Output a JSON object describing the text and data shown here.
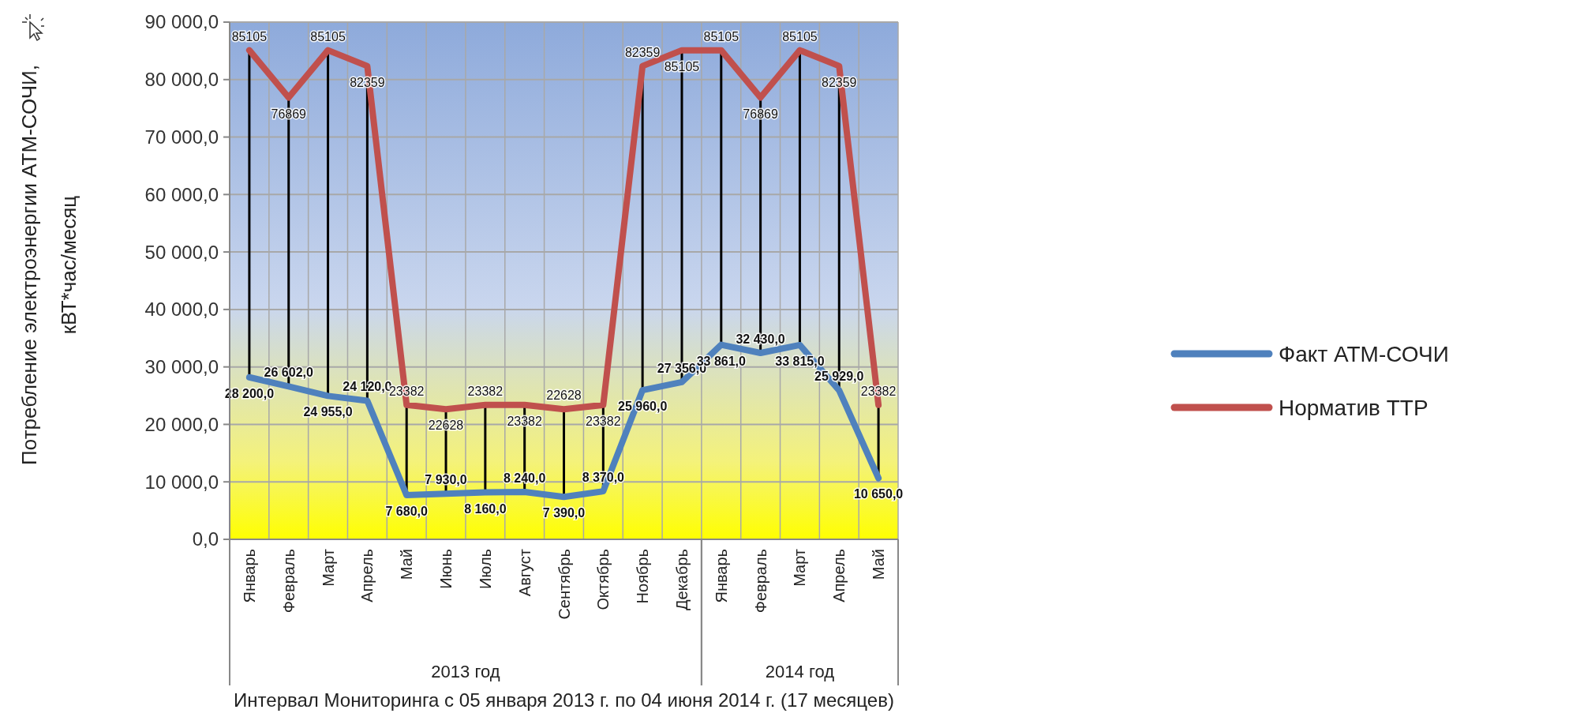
{
  "chart_data": {
    "type": "line",
    "ylabel": "Потребление электроэнергии АТМ-СОЧИ, кВТ*час/месяц",
    "categories": [
      "Январь",
      "Февраль",
      "Март",
      "Апрель",
      "Май",
      "Июнь",
      "Июль",
      "Август",
      "Сентябрь",
      "Октябрь",
      "Ноябрь",
      "Декабрь",
      "Январь",
      "Февраль",
      "Март",
      "Апрель",
      "Май"
    ],
    "series": [
      {
        "name": "Факт АТМ-СОЧИ",
        "color": "#4f81bd",
        "values": [
          28200,
          26602,
          24955,
          24120,
          7680,
          7930,
          8160,
          8240,
          7390,
          8370,
          25960,
          27356,
          33861,
          32430,
          33815,
          25929,
          10650
        ],
        "value_labels": [
          "28 200,0",
          "26 602,0",
          "24 955,0",
          "24 120,0",
          "7 680,0",
          "7 930,0",
          "8 160,0",
          "8 240,0",
          "7 390,0",
          "8 370,0",
          "25 960,0",
          "27 356,0",
          "33 861,0",
          "32 430,0",
          "33 815,0",
          "25 929,0",
          "10 650,0"
        ]
      },
      {
        "name": "Норматив ТТР",
        "color": "#c0504d",
        "values": [
          85105,
          76869,
          85105,
          82359,
          23382,
          22628,
          23382,
          23382,
          22628,
          23382,
          82359,
          85105,
          85105,
          76869,
          85105,
          82359,
          23382
        ],
        "value_labels": [
          "85105",
          "76869",
          "85105",
          "82359",
          "23382",
          "22628",
          "23382",
          "23382",
          "22628",
          "23382",
          "82359",
          "85105",
          "85105",
          "76869",
          "85105",
          "82359",
          "23382"
        ]
      }
    ],
    "ylim": [
      0,
      90000
    ],
    "yticks": [
      {
        "value": 0,
        "label": "0,0"
      },
      {
        "value": 10000,
        "label": "10 000,0"
      },
      {
        "value": 20000,
        "label": "20 000,0"
      },
      {
        "value": 30000,
        "label": "30 000,0"
      },
      {
        "value": 40000,
        "label": "40 000,0"
      },
      {
        "value": 50000,
        "label": "50 000,0"
      },
      {
        "value": 60000,
        "label": "60 000,0"
      },
      {
        "value": 70000,
        "label": "70 000,0"
      },
      {
        "value": 80000,
        "label": "80 000,0"
      },
      {
        "value": 90000,
        "label": "90 000,0"
      }
    ],
    "grid": true,
    "legend": "right",
    "marker": "none",
    "line_style": "solid",
    "annotations": [
      "2013 год",
      "2014 год",
      "Интервал Мониторинга с 05 января 2013 г. по 04 июня 2014 г. (17 месяцев)"
    ]
  }
}
